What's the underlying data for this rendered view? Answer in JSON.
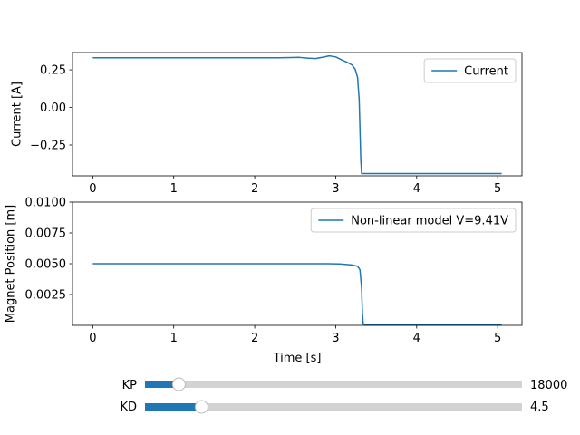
{
  "chart_data": [
    {
      "type": "line",
      "ylabel": "Current [A]",
      "xlim": [
        -0.25,
        5.3
      ],
      "ylim": [
        -0.455,
        0.365
      ],
      "xticks": [
        0,
        1,
        2,
        3,
        4,
        5
      ],
      "xtick_labels": [
        "0",
        "1",
        "2",
        "3",
        "4",
        "5"
      ],
      "yticks": [
        0.25,
        0.0,
        -0.25
      ],
      "ytick_labels": [
        "0.25",
        "0.00",
        "−0.25"
      ],
      "legend": "upper right",
      "color": "#1f77b4",
      "series": [
        {
          "name": "Current",
          "x": [
            0,
            0.5,
            1.0,
            1.5,
            2.0,
            2.3,
            2.45,
            2.55,
            2.65,
            2.75,
            2.85,
            2.92,
            3.0,
            3.08,
            3.15,
            3.2,
            3.24,
            3.27,
            3.29,
            3.3,
            3.31,
            3.32,
            3.35,
            4.0,
            4.5,
            5.05
          ],
          "y": [
            0.33,
            0.33,
            0.33,
            0.33,
            0.33,
            0.33,
            0.332,
            0.333,
            0.328,
            0.325,
            0.335,
            0.343,
            0.336,
            0.315,
            0.298,
            0.283,
            0.255,
            0.2,
            0.05,
            -0.15,
            -0.35,
            -0.44,
            -0.44,
            -0.44,
            -0.44,
            -0.44
          ]
        }
      ]
    },
    {
      "type": "line",
      "xlabel": "Time [s]",
      "ylabel": "Magnet Position [m]",
      "xlim": [
        -0.25,
        5.3
      ],
      "ylim": [
        0.0,
        0.01
      ],
      "xticks": [
        0,
        1,
        2,
        3,
        4,
        5
      ],
      "xtick_labels": [
        "0",
        "1",
        "2",
        "3",
        "4",
        "5"
      ],
      "yticks": [
        0.01,
        0.0075,
        0.005,
        0.0025
      ],
      "ytick_labels": [
        "0.0100",
        "0.0075",
        "0.0050",
        "0.0025"
      ],
      "legend": "upper right",
      "color": "#1f77b4",
      "series": [
        {
          "name": "Non-linear model V=9.41V",
          "x": [
            0,
            1.0,
            2.0,
            2.9,
            3.05,
            3.2,
            3.27,
            3.3,
            3.32,
            3.33,
            3.34,
            3.36,
            4.0,
            5.0,
            5.05
          ],
          "y": [
            0.005,
            0.005,
            0.005,
            0.005,
            0.00498,
            0.0049,
            0.0048,
            0.0045,
            0.003,
            0.001,
            0.0001,
            2e-05,
            2e-05,
            2e-05,
            2e-05
          ]
        }
      ]
    }
  ],
  "controls": {
    "sliders": [
      {
        "label": "KP",
        "value_text": "18000",
        "fraction": 0.09
      },
      {
        "label": "KD",
        "value_text": "4.5",
        "fraction": 0.15
      }
    ],
    "fill_color": "#1f77b4",
    "track_color": "#d3d3d3"
  }
}
